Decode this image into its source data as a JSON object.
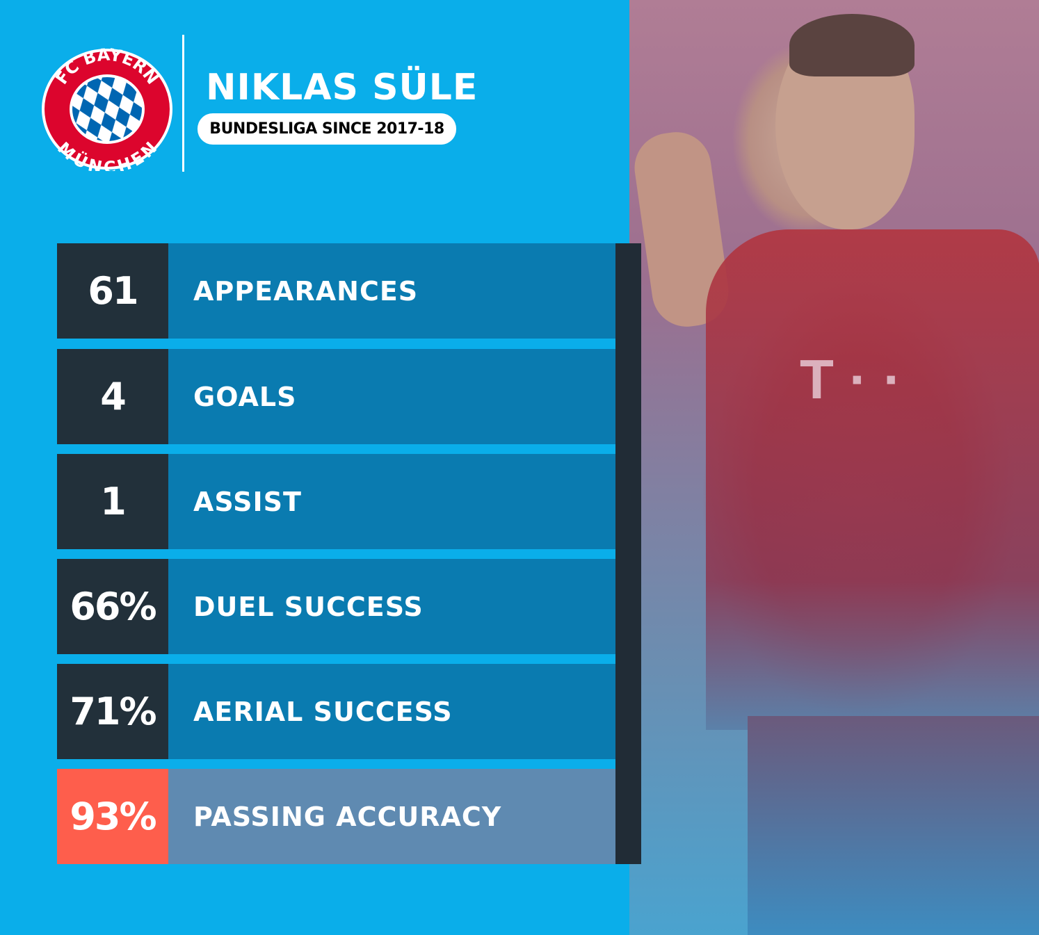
{
  "logo": {
    "text_top": "FC BAYERN",
    "text_bottom": "MÜNCHEN",
    "colors": {
      "red": "#dc052d",
      "blue": "#0066b2"
    }
  },
  "player": {
    "name": "NIKLAS SÜLE",
    "subtitle": "BUNDESLIGA SINCE 2017-18"
  },
  "stats": [
    {
      "value": "61",
      "label": "APPEARANCES"
    },
    {
      "value": "4",
      "label": "GOALS"
    },
    {
      "value": "1",
      "label": "ASSIST"
    },
    {
      "value": "66%",
      "label": "DUEL SUCCESS"
    },
    {
      "value": "71%",
      "label": "AERIAL SUCCESS"
    },
    {
      "value": "93%",
      "label": "PASSING ACCURACY",
      "highlight": true
    }
  ],
  "colors": {
    "background": "#0aaeea",
    "number_box": "#22303a",
    "label_bar": "#0a7bb0",
    "highlight_number": "#fe5e4c",
    "highlight_bar": "#5f8ab1"
  }
}
